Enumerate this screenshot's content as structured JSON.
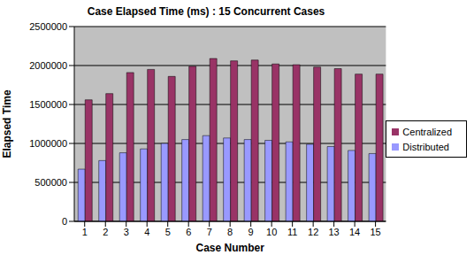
{
  "chart_data": {
    "type": "bar",
    "title": "Case Elapsed Time (ms) : 15 Concurrent Cases",
    "x_label": "Case Number",
    "y_label": "Elapsed Time",
    "categories": [
      "1",
      "2",
      "3",
      "4",
      "5",
      "6",
      "7",
      "8",
      "9",
      "10",
      "11",
      "12",
      "13",
      "14",
      "15"
    ],
    "series": [
      {
        "name": "Distributed",
        "color": "#9999ff",
        "values": [
          670000,
          780000,
          880000,
          930000,
          1000000,
          1050000,
          1100000,
          1070000,
          1050000,
          1040000,
          1020000,
          990000,
          960000,
          910000,
          870000
        ]
      },
      {
        "name": "Centralized",
        "color": "#993366",
        "values": [
          1560000,
          1640000,
          1910000,
          1950000,
          1860000,
          1990000,
          2090000,
          2060000,
          2070000,
          2020000,
          2010000,
          1980000,
          1960000,
          1890000,
          1890000
        ]
      }
    ],
    "ylim": [
      0,
      2500000
    ],
    "yticks": [
      0,
      500000,
      1000000,
      1500000,
      2000000,
      2500000
    ],
    "grid": true,
    "legend": "right"
  }
}
